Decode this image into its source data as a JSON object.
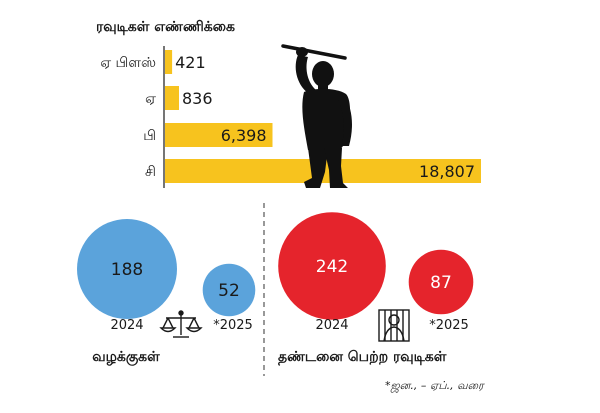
{
  "chart_data": [
    {
      "type": "bar",
      "orientation": "horizontal",
      "title": "ரவுடிகள் எண்ணிக்கை",
      "categories": [
        "ஏ பிளஸ்",
        "ஏ",
        "பி",
        "சி"
      ],
      "values": [
        421,
        836,
        6398,
        18807
      ],
      "value_labels": [
        "421",
        "836",
        "6,398",
        "18,807"
      ],
      "bar_color": "#f7c31e",
      "grid": false,
      "decoration": "silhouette-of-man-with-stick"
    },
    {
      "type": "bubble",
      "title": "வழக்குகள்",
      "categories": [
        "2024",
        "*2025"
      ],
      "values": [
        188,
        52
      ],
      "value_labels": [
        "188",
        "52"
      ],
      "color": "#5ba3db",
      "icon": "scales-of-justice-icon"
    },
    {
      "type": "bubble",
      "title": "தண்டனை பெற்ற ரவுடிகள்",
      "categories": [
        "2024",
        "*2025"
      ],
      "values": [
        242,
        87
      ],
      "value_labels": [
        "242",
        "87"
      ],
      "color": "#e5242c",
      "icon": "prisoner-behind-bars-icon"
    }
  ],
  "footnote": "*ஜன., – ஏப்., வரை",
  "colors": {
    "axis": "#1a1a1a",
    "divider": "#555555",
    "silhouette": "#111111"
  }
}
